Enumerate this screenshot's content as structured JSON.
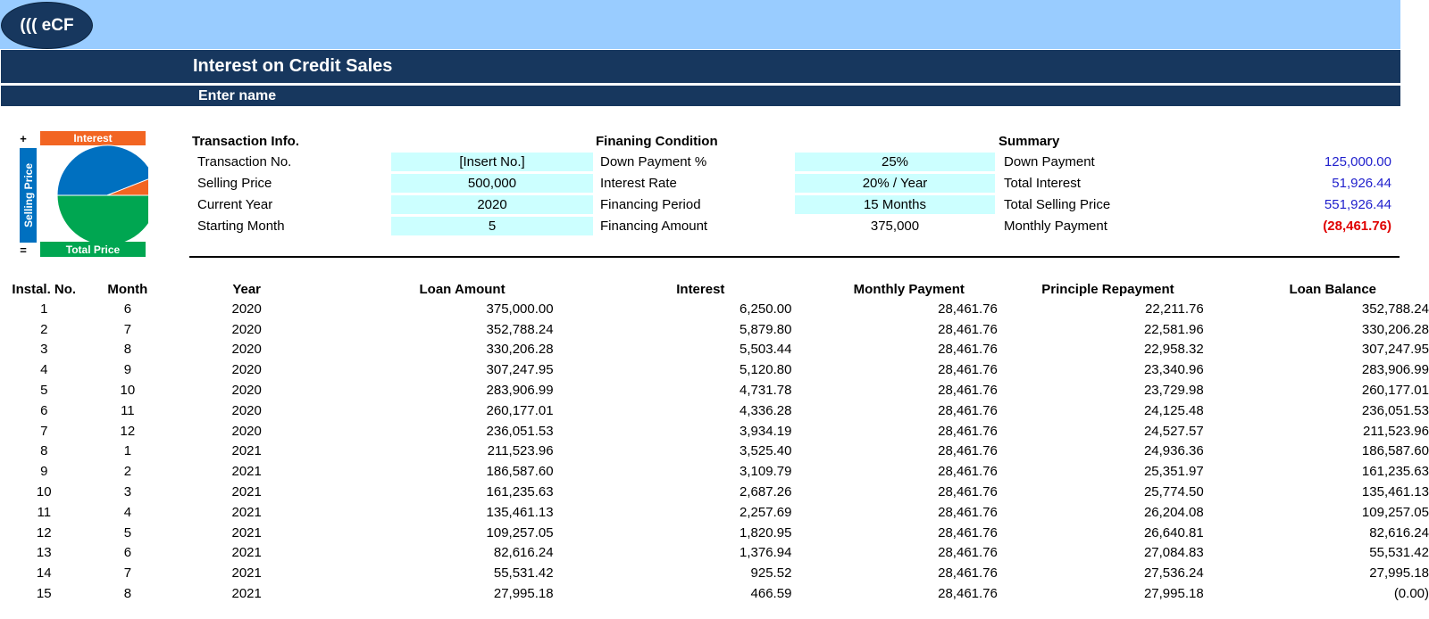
{
  "logo": {
    "text": "((( eCF"
  },
  "header": {
    "title": "Interest on Credit Sales",
    "subtitle": "Enter name"
  },
  "chart_legend": {
    "plus": "+",
    "equals": "=",
    "interest_label": "Interest",
    "selling_price_label": "Selling Price",
    "total_price_label": "Total Price",
    "colors": {
      "interest": "#f26522",
      "selling_price": "#0070c0",
      "total": "#00a651"
    }
  },
  "chart_data": {
    "type": "pie",
    "categories": [
      "Selling Price",
      "Interest",
      "Total Price"
    ],
    "values": [
      500000,
      51926.44,
      551926.44
    ]
  },
  "transaction": {
    "heading": "Transaction Info.",
    "rows": [
      {
        "label": "Transaction No.",
        "value": "[Insert No.]"
      },
      {
        "label": "Selling Price",
        "value": "500,000"
      },
      {
        "label": "Current Year",
        "value": "2020"
      },
      {
        "label": "Starting Month",
        "value": "5"
      }
    ]
  },
  "financing": {
    "heading": "Finaning Condition",
    "rows": [
      {
        "label": "Down Payment %",
        "value": "25%"
      },
      {
        "label": "Interest Rate",
        "value": "20% / Year"
      },
      {
        "label": "Financing Period",
        "value": "15 Months"
      },
      {
        "label": "Financing Amount",
        "value": "375,000"
      }
    ]
  },
  "summary": {
    "heading": "Summary",
    "rows": [
      {
        "label": "Down Payment",
        "value": "125,000.00"
      },
      {
        "label": "Total Interest",
        "value": "51,926.44"
      },
      {
        "label": "Total Selling Price",
        "value": "551,926.44"
      },
      {
        "label": "Monthly Payment",
        "value": "(28,461.76)"
      }
    ]
  },
  "schedule": {
    "columns": [
      "Instal. No.",
      "Month",
      "Year",
      "Loan Amount",
      "Interest",
      "Monthly Payment",
      "Principle Repayment",
      "Loan Balance"
    ],
    "rows": [
      [
        "1",
        "6",
        "2020",
        "375,000.00",
        "6,250.00",
        "28,461.76",
        "22,211.76",
        "352,788.24"
      ],
      [
        "2",
        "7",
        "2020",
        "352,788.24",
        "5,879.80",
        "28,461.76",
        "22,581.96",
        "330,206.28"
      ],
      [
        "3",
        "8",
        "2020",
        "330,206.28",
        "5,503.44",
        "28,461.76",
        "22,958.32",
        "307,247.95"
      ],
      [
        "4",
        "9",
        "2020",
        "307,247.95",
        "5,120.80",
        "28,461.76",
        "23,340.96",
        "283,906.99"
      ],
      [
        "5",
        "10",
        "2020",
        "283,906.99",
        "4,731.78",
        "28,461.76",
        "23,729.98",
        "260,177.01"
      ],
      [
        "6",
        "11",
        "2020",
        "260,177.01",
        "4,336.28",
        "28,461.76",
        "24,125.48",
        "236,051.53"
      ],
      [
        "7",
        "12",
        "2020",
        "236,051.53",
        "3,934.19",
        "28,461.76",
        "24,527.57",
        "211,523.96"
      ],
      [
        "8",
        "1",
        "2021",
        "211,523.96",
        "3,525.40",
        "28,461.76",
        "24,936.36",
        "186,587.60"
      ],
      [
        "9",
        "2",
        "2021",
        "186,587.60",
        "3,109.79",
        "28,461.76",
        "25,351.97",
        "161,235.63"
      ],
      [
        "10",
        "3",
        "2021",
        "161,235.63",
        "2,687.26",
        "28,461.76",
        "25,774.50",
        "135,461.13"
      ],
      [
        "11",
        "4",
        "2021",
        "135,461.13",
        "2,257.69",
        "28,461.76",
        "26,204.08",
        "109,257.05"
      ],
      [
        "12",
        "5",
        "2021",
        "109,257.05",
        "1,820.95",
        "28,461.76",
        "26,640.81",
        "82,616.24"
      ],
      [
        "13",
        "6",
        "2021",
        "82,616.24",
        "1,376.94",
        "28,461.76",
        "27,084.83",
        "55,531.42"
      ],
      [
        "14",
        "7",
        "2021",
        "55,531.42",
        "925.52",
        "28,461.76",
        "27,536.24",
        "27,995.18"
      ],
      [
        "15",
        "8",
        "2021",
        "27,995.18",
        "466.59",
        "28,461.76",
        "27,995.18",
        "(0.00)"
      ]
    ]
  }
}
